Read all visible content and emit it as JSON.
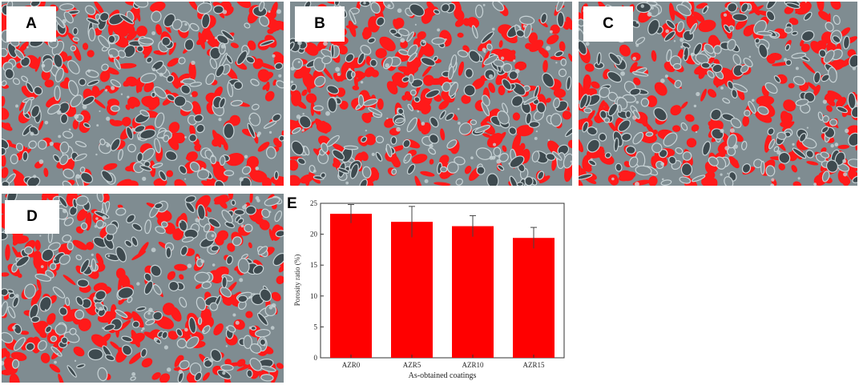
{
  "panels": [
    {
      "id": "A",
      "label": "A"
    },
    {
      "id": "B",
      "label": "B"
    },
    {
      "id": "C",
      "label": "C"
    },
    {
      "id": "D",
      "label": "D"
    }
  ],
  "colors": {
    "pore": "#ff1a1a",
    "grain": "#7f8c91",
    "grain_light": "#c8d3d6",
    "grain_dark": "#3e4a4f",
    "bar": "#ff0000"
  },
  "chart_label": "E",
  "chart_data": {
    "type": "bar",
    "categories": [
      "AZR0",
      "AZR5",
      "AZR10",
      "AZR15"
    ],
    "values": [
      23.3,
      22.0,
      21.3,
      19.4
    ],
    "errors": [
      1.5,
      2.5,
      1.7,
      1.7
    ],
    "title": "",
    "xlabel": "As-obtained coatings",
    "ylabel": "Porosity ratio (%)",
    "ylim": [
      0,
      25
    ],
    "yticks": [
      0,
      5,
      10,
      15,
      20,
      25
    ],
    "grid": false
  }
}
